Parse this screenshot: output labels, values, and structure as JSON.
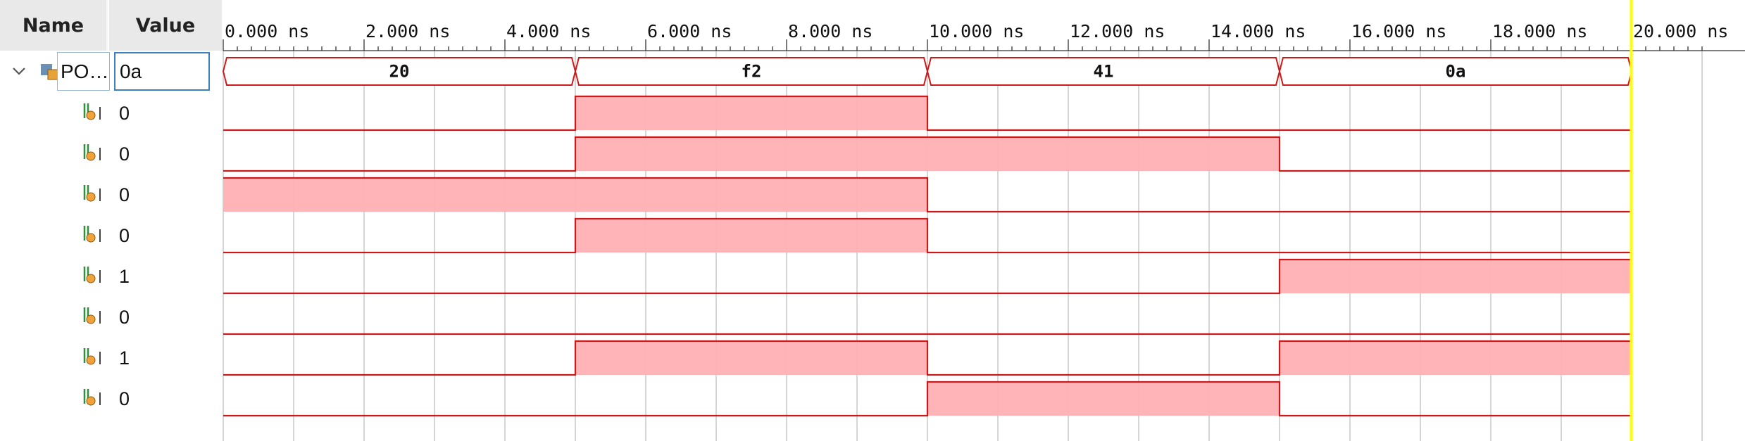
{
  "header": {
    "name_label": "Name",
    "value_label": "Value"
  },
  "bus": {
    "name": "PO…",
    "value": "0a"
  },
  "cursor_time_ns": 20,
  "time_axis": {
    "unit": "ns",
    "ticks": [
      {
        "t": 0,
        "label": "0.000 ns"
      },
      {
        "t": 2,
        "label": "2.000 ns"
      },
      {
        "t": 4,
        "label": "4.000 ns"
      },
      {
        "t": 6,
        "label": "6.000 ns"
      },
      {
        "t": 8,
        "label": "8.000 ns"
      },
      {
        "t": 10,
        "label": "10.000 ns"
      },
      {
        "t": 12,
        "label": "12.000 ns"
      },
      {
        "t": 14,
        "label": "14.000 ns"
      },
      {
        "t": 16,
        "label": "16.000 ns"
      },
      {
        "t": 18,
        "label": "18.000 ns"
      },
      {
        "t": 20,
        "label": "20.000 ns"
      }
    ]
  },
  "bus_segments": [
    {
      "start": 0,
      "end": 5,
      "label": "20"
    },
    {
      "start": 5,
      "end": 10,
      "label": "f2"
    },
    {
      "start": 10,
      "end": 15,
      "label": "41"
    },
    {
      "start": 15,
      "end": 20,
      "label": "0a"
    }
  ],
  "signals": [
    {
      "value": "0",
      "levels": [
        0,
        1,
        0,
        0
      ]
    },
    {
      "value": "0",
      "levels": [
        0,
        1,
        1,
        0
      ]
    },
    {
      "value": "0",
      "levels": [
        1,
        1,
        0,
        0
      ]
    },
    {
      "value": "0",
      "levels": [
        0,
        1,
        0,
        0
      ]
    },
    {
      "value": "1",
      "levels": [
        0,
        0,
        0,
        1
      ]
    },
    {
      "value": "0",
      "levels": [
        0,
        0,
        0,
        0
      ]
    },
    {
      "value": "1",
      "levels": [
        0,
        1,
        0,
        1
      ]
    },
    {
      "value": "0",
      "levels": [
        0,
        0,
        1,
        0
      ]
    }
  ],
  "colors": {
    "wave": "#cc1a1a",
    "fill": "#ffb0b4",
    "grid": "#c8c8c8",
    "cursor": "#ffff00"
  }
}
